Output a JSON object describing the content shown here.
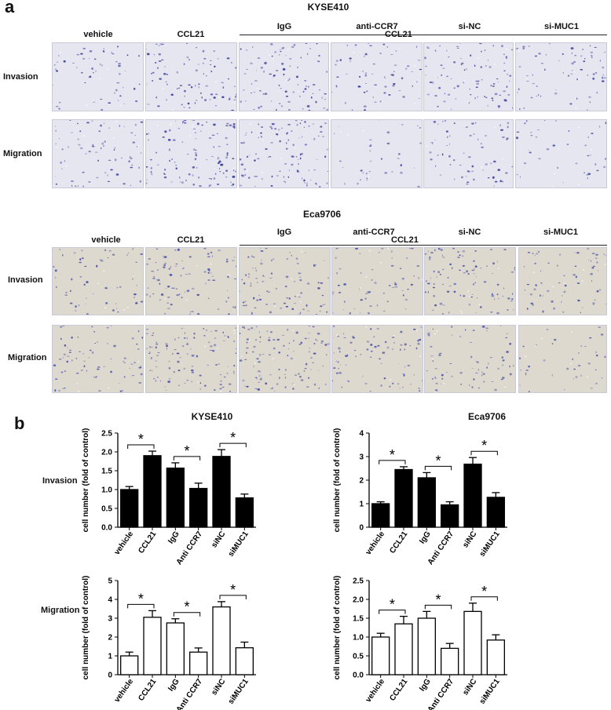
{
  "figure": {
    "panel_a_letter": "a",
    "panel_b_letter": "b",
    "microscopy": {
      "sets": [
        {
          "title": "KYSE410",
          "columns": [
            "vehicle",
            "CCL21",
            "IgG",
            "anti-CCR7",
            "si-NC",
            "si-MUC1"
          ],
          "group_label": "CCL21",
          "rows": [
            "Invasion",
            "Migration"
          ],
          "bg_color": "#e6e6f0",
          "cell_color": "#3c3d9a"
        },
        {
          "title": "Eca9706",
          "columns": [
            "vehicle",
            "CCL21",
            "IgG",
            "anti-CCR7",
            "si-NC",
            "si-MUC1"
          ],
          "group_label": "CCL21",
          "rows": [
            "Invasion",
            "Migration"
          ],
          "bg_color": "#ded9cf",
          "cell_color": "#4a4fa8"
        }
      ]
    },
    "charts_meta": {
      "titles": [
        "KYSE410",
        "Eca9706"
      ],
      "row_labels": [
        "Invasion",
        "Migration"
      ],
      "significance_mark": "*",
      "filled_color": "#000000",
      "open_color": "#ffffff"
    }
  },
  "chart_data": [
    {
      "type": "bar",
      "title": "KYSE410",
      "row": "Invasion",
      "categories": [
        "vehicle",
        "CCL21",
        "IgG",
        "Anti CCR7",
        "siNC",
        "siMUC1"
      ],
      "values": [
        1.0,
        1.9,
        1.57,
        1.03,
        1.88,
        0.78
      ],
      "errors": [
        0.08,
        0.12,
        0.14,
        0.14,
        0.18,
        0.1
      ],
      "ylabel": "cell number (fold of control)",
      "ylim": [
        0,
        2.5
      ],
      "yticks": [
        0.0,
        0.5,
        1.0,
        1.5,
        2.0,
        2.5
      ],
      "yticklabels": [
        "0.0",
        "0.5",
        "1.0",
        "1.5",
        "2.0",
        "2.5"
      ],
      "fill": "filled",
      "brackets": [
        [
          0,
          1
        ],
        [
          2,
          3
        ],
        [
          4,
          5
        ]
      ]
    },
    {
      "type": "bar",
      "title": "Eca9706",
      "row": "Invasion",
      "categories": [
        "vehicle",
        "CCL21",
        "IgG",
        "Anti CCR7",
        "siNC",
        "siMUC1"
      ],
      "values": [
        1.0,
        2.45,
        2.1,
        0.95,
        2.68,
        1.27
      ],
      "errors": [
        0.08,
        0.12,
        0.22,
        0.13,
        0.28,
        0.2
      ],
      "ylabel": "cell number (fold of control)",
      "ylim": [
        0,
        4
      ],
      "yticks": [
        0,
        1,
        2,
        3,
        4
      ],
      "yticklabels": [
        "0",
        "1",
        "2",
        "3",
        "4"
      ],
      "fill": "filled",
      "brackets": [
        [
          0,
          1
        ],
        [
          2,
          3
        ],
        [
          4,
          5
        ]
      ]
    },
    {
      "type": "bar",
      "title": "KYSE410",
      "row": "Migration",
      "categories": [
        "vehicle",
        "CCL21",
        "IgG",
        "Anti CCR7",
        "siNC",
        "siMUC1"
      ],
      "values": [
        1.0,
        3.05,
        2.75,
        1.2,
        3.6,
        1.43
      ],
      "errors": [
        0.2,
        0.35,
        0.22,
        0.22,
        0.28,
        0.3
      ],
      "ylabel": "cell number (fold of control)",
      "ylim": [
        0,
        5
      ],
      "yticks": [
        0,
        1,
        2,
        3,
        4,
        5
      ],
      "yticklabels": [
        "0",
        "1",
        "2",
        "3",
        "4",
        "5"
      ],
      "fill": "open",
      "brackets": [
        [
          0,
          1
        ],
        [
          2,
          3
        ],
        [
          4,
          5
        ]
      ]
    },
    {
      "type": "bar",
      "title": "Eca9706",
      "row": "Migration",
      "categories": [
        "vehicle",
        "CCL21",
        "IgG",
        "Anti CCR7",
        "siNC",
        "siMUC1"
      ],
      "values": [
        1.0,
        1.35,
        1.5,
        0.7,
        1.68,
        0.92
      ],
      "errors": [
        0.1,
        0.2,
        0.18,
        0.13,
        0.22,
        0.14
      ],
      "ylabel": "cell number (fold of control)",
      "ylim": [
        0,
        2.5
      ],
      "yticks": [
        0.0,
        0.5,
        1.0,
        1.5,
        2.0,
        2.5
      ],
      "yticklabels": [
        "0.0",
        "0.5",
        "1.0",
        "1.5",
        "2.0",
        "2.5"
      ],
      "fill": "open",
      "brackets": [
        [
          0,
          1
        ],
        [
          2,
          3
        ],
        [
          4,
          5
        ]
      ]
    }
  ]
}
